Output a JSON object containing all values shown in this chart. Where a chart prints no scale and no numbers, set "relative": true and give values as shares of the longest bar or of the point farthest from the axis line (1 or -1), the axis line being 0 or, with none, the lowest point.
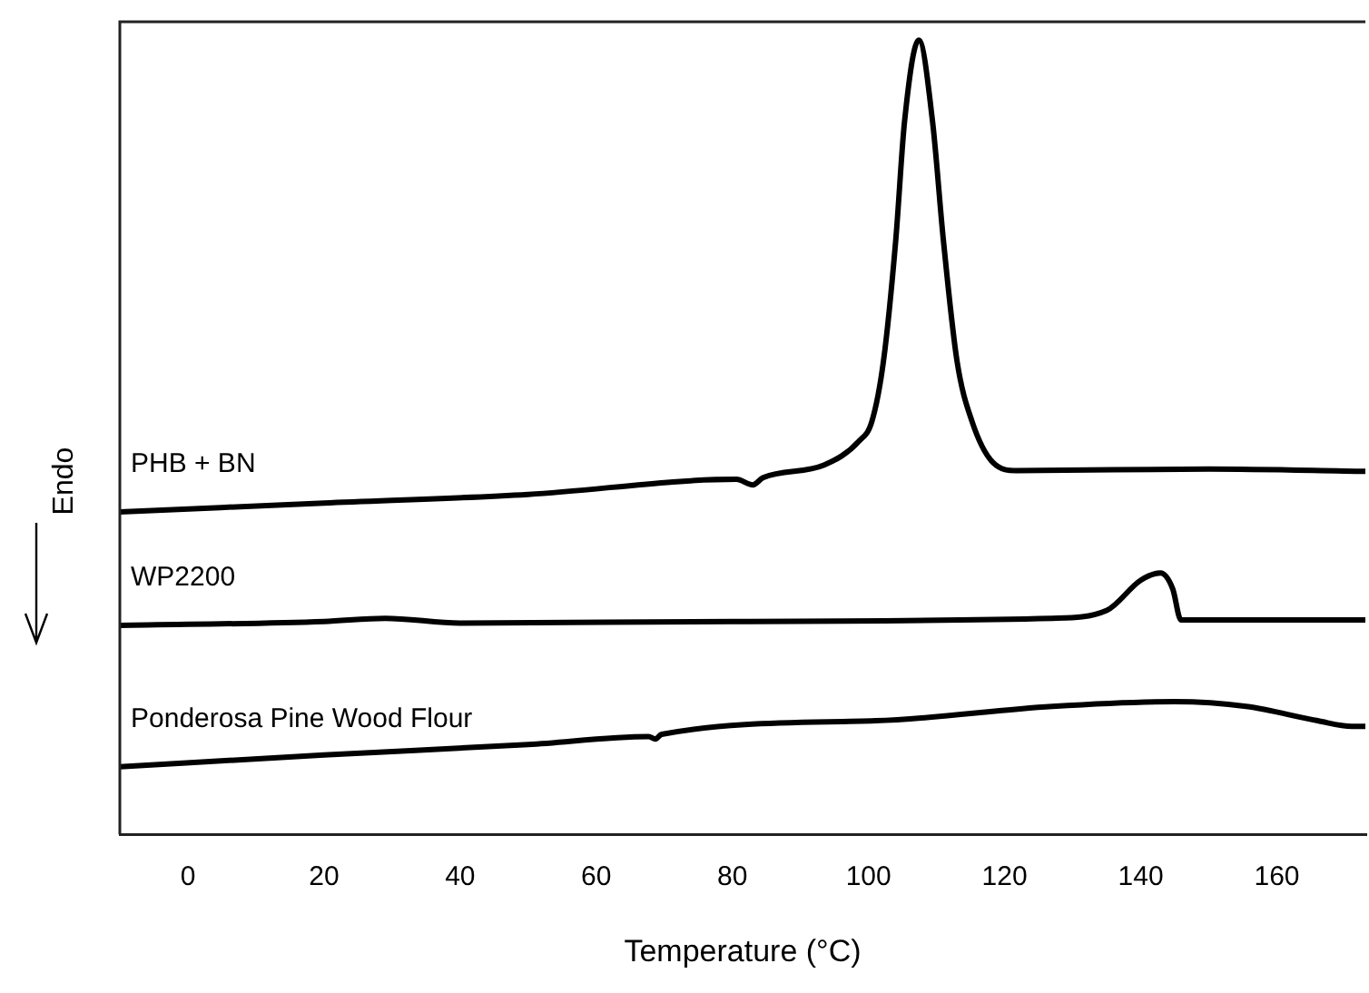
{
  "chart_data": {
    "type": "line",
    "xlabel": "Temperature (°C)",
    "ylabel": "Endo",
    "relative": true,
    "tick_labels": "x",
    "grid": false,
    "legend": false,
    "marker": "none",
    "line_style": "solid",
    "xlim": [
      -10,
      173
    ],
    "xticks": [
      0,
      20,
      40,
      60,
      80,
      100,
      120,
      140,
      160
    ],
    "series": [
      {
        "name": "PHB + BN",
        "color": "#000000",
        "x": [
          -10,
          20,
          50,
          80.6,
          83,
          84.5,
          93.5,
          98.6,
          100.5,
          102.2,
          104,
          105.3,
          107.4,
          109.4,
          111,
          113,
          115.2,
          118.3,
          121.8,
          150,
          173
        ],
        "values": [
          0.406,
          0.417,
          0.428,
          0.447,
          0.44,
          0.449,
          0.465,
          0.495,
          0.52,
          0.596,
          0.748,
          0.898,
          1.0,
          0.898,
          0.748,
          0.596,
          0.52,
          0.468,
          0.458,
          0.46,
          0.457
        ]
      },
      {
        "name": "WP2200",
        "color": "#000000",
        "x": [
          -10,
          20,
          29,
          40,
          80,
          127,
          135,
          140,
          142.9,
          144.7,
          145.9,
          160,
          173
        ],
        "values": [
          0.263,
          0.268,
          0.272,
          0.266,
          0.268,
          0.272,
          0.282,
          0.32,
          0.329,
          0.309,
          0.27,
          0.27,
          0.27
        ]
      },
      {
        "name": "Ponderosa Pine Wood Flour",
        "color": "#000000",
        "x": [
          -10,
          20,
          50,
          67.7,
          68.7,
          69.6,
          101,
          127,
          145,
          155.5,
          166,
          171,
          173
        ],
        "values": [
          0.085,
          0.1,
          0.113,
          0.123,
          0.12,
          0.126,
          0.143,
          0.161,
          0.167,
          0.161,
          0.143,
          0.136,
          0.136
        ]
      }
    ]
  }
}
